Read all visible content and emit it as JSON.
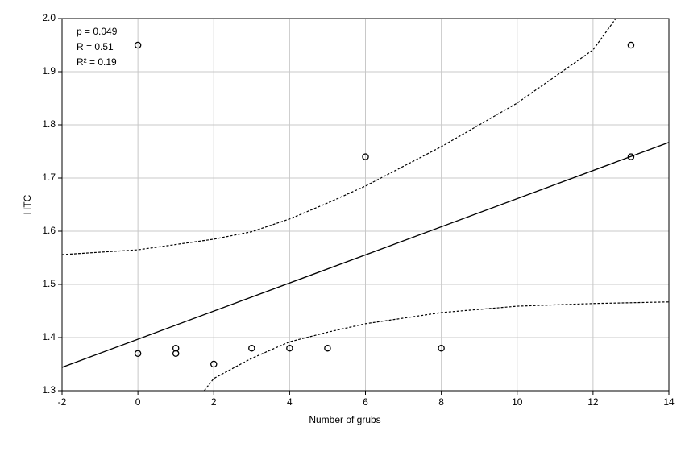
{
  "chart_data": {
    "type": "scatter",
    "xlabel": "Number of grubs",
    "ylabel": "HTC",
    "annotations": [
      "p = 0.049",
      "R = 0.51",
      "R² = 0.19"
    ],
    "xlim": [
      -2,
      14
    ],
    "xticks": [
      -2,
      0,
      2,
      4,
      6,
      8,
      10,
      12,
      14
    ],
    "ylim": [
      1.3,
      2.0
    ],
    "yticks": [
      1.3,
      1.4,
      1.5,
      1.6,
      1.7,
      1.8,
      1.9,
      {
        "value": 2.0,
        "label": "2.0"
      }
    ],
    "grid": true,
    "series": [
      {
        "kind": "points",
        "color": "#000000",
        "x": [
          0,
          0,
          1,
          1,
          2,
          3,
          4,
          5,
          6,
          8,
          13,
          13
        ],
        "values": [
          1.95,
          1.37,
          1.38,
          1.37,
          1.35,
          1.38,
          1.38,
          1.38,
          1.74,
          1.38,
          1.95,
          1.74
        ]
      },
      {
        "kind": "line",
        "dashed": false,
        "color": "#000000",
        "x": [
          -2,
          14
        ],
        "values": [
          1.344,
          1.767
        ]
      },
      {
        "kind": "line",
        "dashed": true,
        "color": "#000000",
        "x": [
          -2,
          0,
          2,
          3,
          4,
          5,
          6,
          8,
          10,
          12,
          12.6
        ],
        "values": [
          1.556,
          1.565,
          1.585,
          1.599,
          1.623,
          1.653,
          1.685,
          1.759,
          1.841,
          1.941,
          2.0
        ]
      },
      {
        "kind": "line",
        "dashed": true,
        "color": "#000000",
        "x": [
          1.75,
          2,
          3,
          4,
          5,
          6,
          8,
          10,
          12,
          14
        ],
        "values": [
          1.3,
          1.323,
          1.361,
          1.392,
          1.41,
          1.426,
          1.447,
          1.459,
          1.464,
          1.467
        ]
      }
    ]
  }
}
